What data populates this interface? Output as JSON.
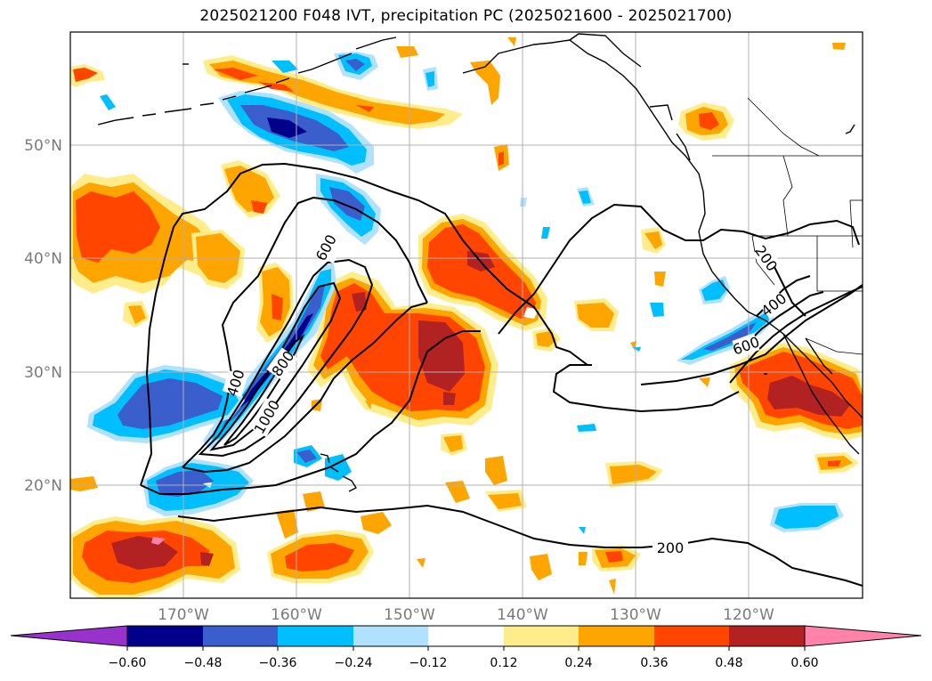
{
  "title": "2025021200 F048 IVT, precipitation PC (2025021600 - 2025021700)",
  "map": {
    "lat_labels": [
      "50°N",
      "40°N",
      "30°N",
      "20°N"
    ],
    "lon_labels": [
      "170°W",
      "160°W",
      "150°W",
      "140°W",
      "130°W",
      "120°W"
    ],
    "contour_labels": [
      "600",
      "800",
      "1000",
      "400",
      "600",
      "400",
      "200",
      "200"
    ]
  },
  "colorbar": {
    "ticks": [
      "−0.60",
      "−0.48",
      "−0.36",
      "−0.24",
      "−0.12",
      "0.12",
      "0.24",
      "0.36",
      "0.48",
      "0.60"
    ],
    "colors": [
      "#9932cc",
      "#00008b",
      "#3a5fcd",
      "#00bfff",
      "#b0e2ff",
      "#ffffff",
      "#ffec8b",
      "#ffa500",
      "#ff4500",
      "#b22222",
      "#ff82ab"
    ]
  },
  "palette": {
    "neg_extreme": "#9932cc",
    "neg_strong": "#00008b",
    "neg_mod": "#3a5fcd",
    "neg_weak": "#00bfff",
    "neg_light": "#b0e2ff",
    "pos_light": "#ffec8b",
    "pos_weak": "#ffa500",
    "pos_mod": "#ff4500",
    "pos_strong": "#b22222",
    "pos_extreme": "#ff82ab",
    "gridline": "#b0b0b0",
    "contour": "#000000"
  }
}
